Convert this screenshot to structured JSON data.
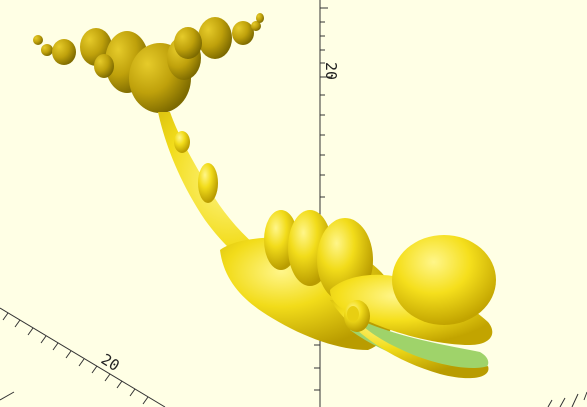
{
  "viewport": {
    "background": "#ffffe5",
    "model_color": "#f2dc1a",
    "model_shadow": "#b49a05",
    "model_highlight": "#fff27a",
    "inner_mouth_color": "#9fd36a"
  },
  "axes": {
    "z_tick_label": "20",
    "x_tick_label": "20"
  }
}
